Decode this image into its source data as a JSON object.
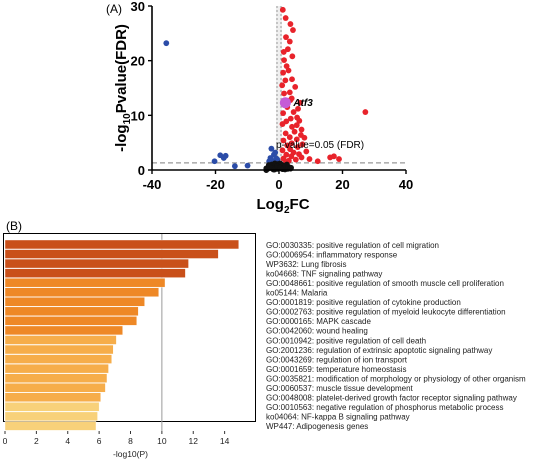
{
  "chart_data": [
    {
      "type": "scatter",
      "panel_label": "(A)",
      "xlabel": "Log",
      "xlabel_sub": "2",
      "xlabel_tail": "FC",
      "ylabel_pre": "-log",
      "ylabel_sub": "10",
      "ylabel_tail": "Pvalue(FDR)",
      "xlim": [
        -40,
        40
      ],
      "ylim": [
        0,
        30
      ],
      "xticks": [
        -40,
        -20,
        0,
        20,
        40
      ],
      "yticks": [
        0,
        10,
        20,
        30
      ],
      "threshold": {
        "y": 1.3,
        "label": "p-value=0.05 (FDR)"
      },
      "highlight": {
        "label": "Atf3",
        "x": 2,
        "y": 12.3
      },
      "colors": {
        "up": "#e8232b",
        "down": "#2b4ca8",
        "ns": "#111111",
        "highlight": "#c55bd6",
        "threshold": "#999999"
      },
      "series": [
        {
          "group": "down",
          "points": [
            [
              -35.5,
              23.2
            ],
            [
              -18.5,
              2.7
            ],
            [
              -17.4,
              2.2
            ],
            [
              -16.8,
              2.6
            ],
            [
              -20.3,
              1.6
            ],
            [
              -13.9,
              0.7
            ],
            [
              -9.9,
              0.8
            ],
            [
              -3.1,
              1.6
            ],
            [
              -2.7,
              2.2
            ],
            [
              -2.4,
              3.9
            ],
            [
              -1.6,
              2.8
            ],
            [
              -1.3,
              1.7
            ],
            [
              -1.2,
              3.2
            ],
            [
              -0.8,
              2.1
            ],
            [
              -0.5,
              1.9
            ],
            [
              -2.0,
              1.4
            ],
            [
              -1.0,
              1.5
            ]
          ]
        },
        {
          "group": "up",
          "points": [
            [
              1.2,
              29.3
            ],
            [
              2.1,
              27.8
            ],
            [
              3.6,
              26.7
            ],
            [
              4.4,
              25.6
            ],
            [
              2.2,
              24.3
            ],
            [
              3.4,
              23.5
            ],
            [
              2.8,
              22.1
            ],
            [
              1.5,
              21.6
            ],
            [
              4.2,
              20.8
            ],
            [
              1.6,
              20.1
            ],
            [
              2.4,
              19.0
            ],
            [
              1.3,
              17.8
            ],
            [
              3.0,
              18.2
            ],
            [
              4.1,
              16.6
            ],
            [
              2.0,
              16.4
            ],
            [
              1.0,
              15.5
            ],
            [
              5.1,
              15.2
            ],
            [
              3.4,
              14.2
            ],
            [
              1.6,
              14.0
            ],
            [
              4.0,
              13.1
            ],
            [
              3.6,
              12.8
            ],
            [
              6.7,
              12.3
            ],
            [
              2.6,
              11.5
            ],
            [
              6.0,
              11.2
            ],
            [
              4.6,
              10.6
            ],
            [
              1.3,
              10.4
            ],
            [
              27.2,
              10.6
            ],
            [
              5.7,
              9.6
            ],
            [
              3.7,
              9.4
            ],
            [
              6.4,
              9.0
            ],
            [
              2.3,
              8.9
            ],
            [
              5.6,
              8.2
            ],
            [
              4.1,
              7.9
            ],
            [
              1.1,
              8.4
            ],
            [
              7.1,
              7.4
            ],
            [
              4.9,
              7.0
            ],
            [
              2.1,
              6.7
            ],
            [
              6.9,
              6.4
            ],
            [
              3.4,
              6.0
            ],
            [
              8.0,
              5.9
            ],
            [
              5.6,
              5.6
            ],
            [
              1.4,
              5.4
            ],
            [
              4.0,
              4.9
            ],
            [
              7.4,
              4.7
            ],
            [
              2.6,
              4.5
            ],
            [
              5.9,
              4.2
            ],
            [
              3.5,
              3.8
            ],
            [
              1.1,
              3.6
            ],
            [
              8.6,
              3.4
            ],
            [
              4.6,
              3.2
            ],
            [
              6.3,
              2.9
            ],
            [
              2.3,
              2.8
            ],
            [
              3.9,
              2.5
            ],
            [
              7.1,
              2.3
            ],
            [
              1.4,
              2.1
            ],
            [
              5.3,
              1.9
            ],
            [
              9.6,
              2.0
            ],
            [
              3.1,
              1.7
            ],
            [
              12.2,
              1.6
            ],
            [
              16.1,
              2.3
            ],
            [
              17.3,
              2.5
            ],
            [
              18.9,
              2.0
            ],
            [
              2.2,
              1.5
            ]
          ]
        },
        {
          "group": "ns",
          "points": [
            [
              -3.6,
              0.2
            ],
            [
              -2.8,
              0.4
            ],
            [
              -2.0,
              0.6
            ],
            [
              -1.5,
              0.3
            ],
            [
              -1.0,
              0.8
            ],
            [
              -0.6,
              0.2
            ],
            [
              0.0,
              0.5
            ],
            [
              0.6,
              0.3
            ],
            [
              1.0,
              0.9
            ],
            [
              1.6,
              0.4
            ],
            [
              2.2,
              0.7
            ],
            [
              2.7,
              0.2
            ],
            [
              3.2,
              0.5
            ],
            [
              -3.2,
              0.9
            ],
            [
              -2.3,
              1.0
            ],
            [
              -0.3,
              1.1
            ],
            [
              0.4,
              1.2
            ],
            [
              0.9,
              0.6
            ],
            [
              -1.8,
              0.1
            ],
            [
              1.9,
              0.1
            ],
            [
              -4.0,
              0.3
            ],
            [
              3.8,
              0.4
            ],
            [
              -2.6,
              0.7
            ],
            [
              2.5,
              1.0
            ],
            [
              -0.9,
              0.4
            ],
            [
              0.3,
              0.8
            ],
            [
              -1.3,
              1.2
            ],
            [
              1.3,
              0.2
            ]
          ]
        }
      ]
    },
    {
      "type": "bar",
      "orientation": "horizontal",
      "panel_label": "(B)",
      "xlabel": "-log10(P)",
      "xlim": [
        0,
        16
      ],
      "xticks": [
        0,
        2,
        4,
        6,
        8,
        10,
        12,
        14
      ],
      "grid_x": [
        10
      ],
      "colors": {
        "dark": "#c9501a",
        "mid": "#ee8826",
        "light": "#f6ad4a",
        "pale": "#f8d17a",
        "bar_edge": "#ffffff"
      },
      "categories": [
        "GO:0030335: positive regulation of cell migration",
        "GO:0006954: inflammatory response",
        "WP3632: Lung fibrosis",
        "ko04668: TNF signaling pathway",
        "GO:0048661: positive regulation of smooth muscle cell proliferation",
        "ko05144: Malaria",
        "GO:0001819: positive regulation of cytokine production",
        "GO:0002763: positive regulation of myeloid leukocyte differentiation",
        "GO:0000165: MAPK cascade",
        "GO:0042060: wound healing",
        "GO:0010942: positive regulation of cell death",
        "GO:2001236: regulation of extrinsic apoptotic signaling pathway",
        "GO:0043269: regulation of ion transport",
        "GO:0001659: temperature homeostasis",
        "GO:0035821: modification of morphology or physiology of other organism",
        "GO:0060537: muscle tissue development",
        "GO:0048008: platelet-derived growth factor receptor signaling pathway",
        "GO:0010563: negative regulation of phosphorus metabolic process",
        "ko04064: NF-kappa B signaling pathway",
        "WP447: Adipogenesis genes"
      ],
      "values": [
        14.9,
        13.6,
        11.7,
        11.5,
        10.2,
        9.8,
        8.9,
        8.5,
        8.4,
        7.5,
        7.1,
        6.9,
        6.8,
        6.6,
        6.5,
        6.4,
        6.1,
        6.0,
        5.9,
        5.8
      ]
    }
  ]
}
